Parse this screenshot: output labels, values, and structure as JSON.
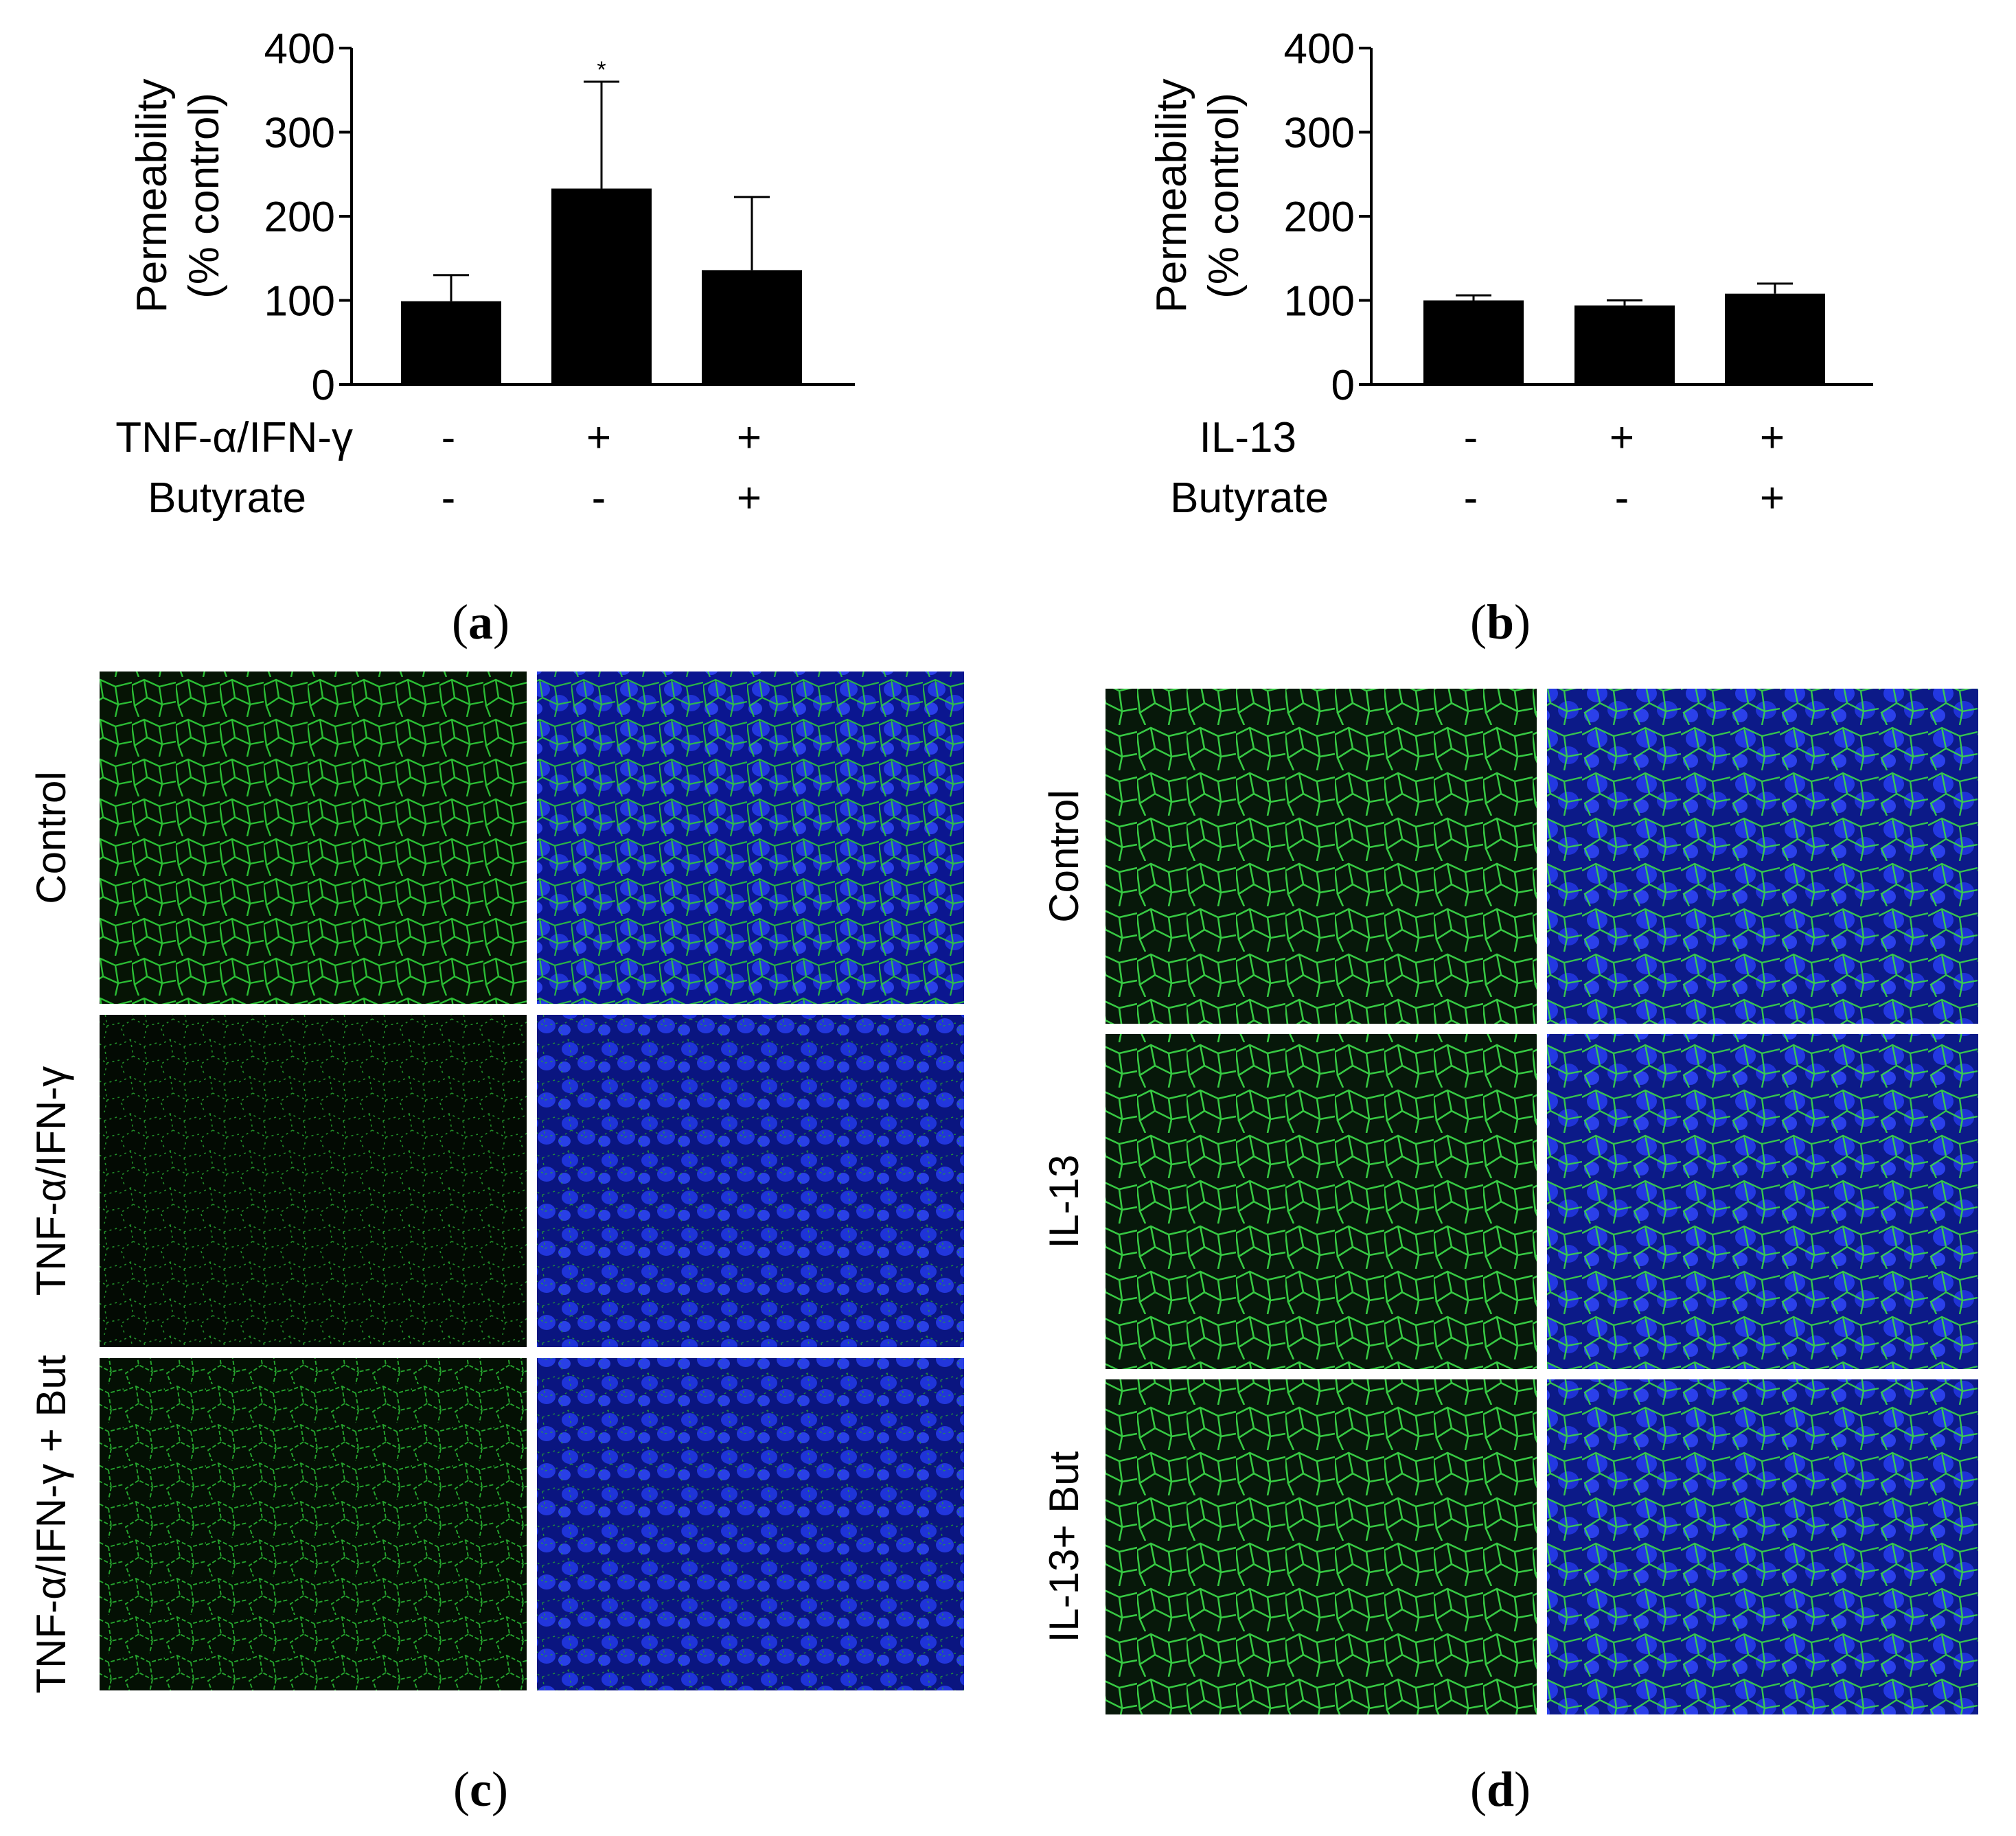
{
  "colors": {
    "bar": "#000000",
    "axis": "#000000",
    "green_stain": "#2fd13a",
    "blue_stain": "#1e2fd8",
    "background": "#ffffff"
  },
  "chart_data": [
    {
      "type": "bar",
      "panel": "a",
      "ylabel_line1": "Permeability",
      "ylabel_line2": "(% control)",
      "ylim": [
        0,
        400
      ],
      "yticks": [
        "0",
        "100",
        "200",
        "300",
        "400"
      ],
      "categories": [
        "1",
        "2",
        "3"
      ],
      "values": [
        99,
        233,
        136
      ],
      "errors": [
        31,
        127,
        87
      ],
      "significance": [
        "",
        "*",
        ""
      ],
      "conditions": [
        {
          "label": "TNF-α/IFN-γ",
          "marks": [
            "-",
            "+",
            "+"
          ]
        },
        {
          "label": "Butyrate",
          "marks": [
            "-",
            "-",
            "+"
          ]
        }
      ],
      "grid": false
    },
    {
      "type": "bar",
      "panel": "b",
      "ylabel_line1": "Permeability",
      "ylabel_line2": "(% control)",
      "ylim": [
        0,
        400
      ],
      "yticks": [
        "0",
        "100",
        "200",
        "300",
        "400"
      ],
      "categories": [
        "1",
        "2",
        "3"
      ],
      "values": [
        100,
        94,
        108
      ],
      "errors": [
        6,
        6,
        12
      ],
      "significance": [
        "",
        "",
        ""
      ],
      "conditions": [
        {
          "label": "IL-13",
          "marks": [
            "-",
            "+",
            "+"
          ]
        },
        {
          "label": "Butyrate",
          "marks": [
            "-",
            "-",
            "+"
          ]
        }
      ],
      "grid": false
    }
  ],
  "panel_labels": {
    "a": "a",
    "b": "b",
    "c": "c",
    "d": "d"
  },
  "micrographs_c": {
    "row_labels": [
      "Control",
      "TNF-α/IFN-γ",
      "TNF-α/IFN-γ + But"
    ]
  },
  "micrographs_d": {
    "row_labels": [
      "Control",
      "IL-13",
      "IL-13+ But"
    ]
  }
}
